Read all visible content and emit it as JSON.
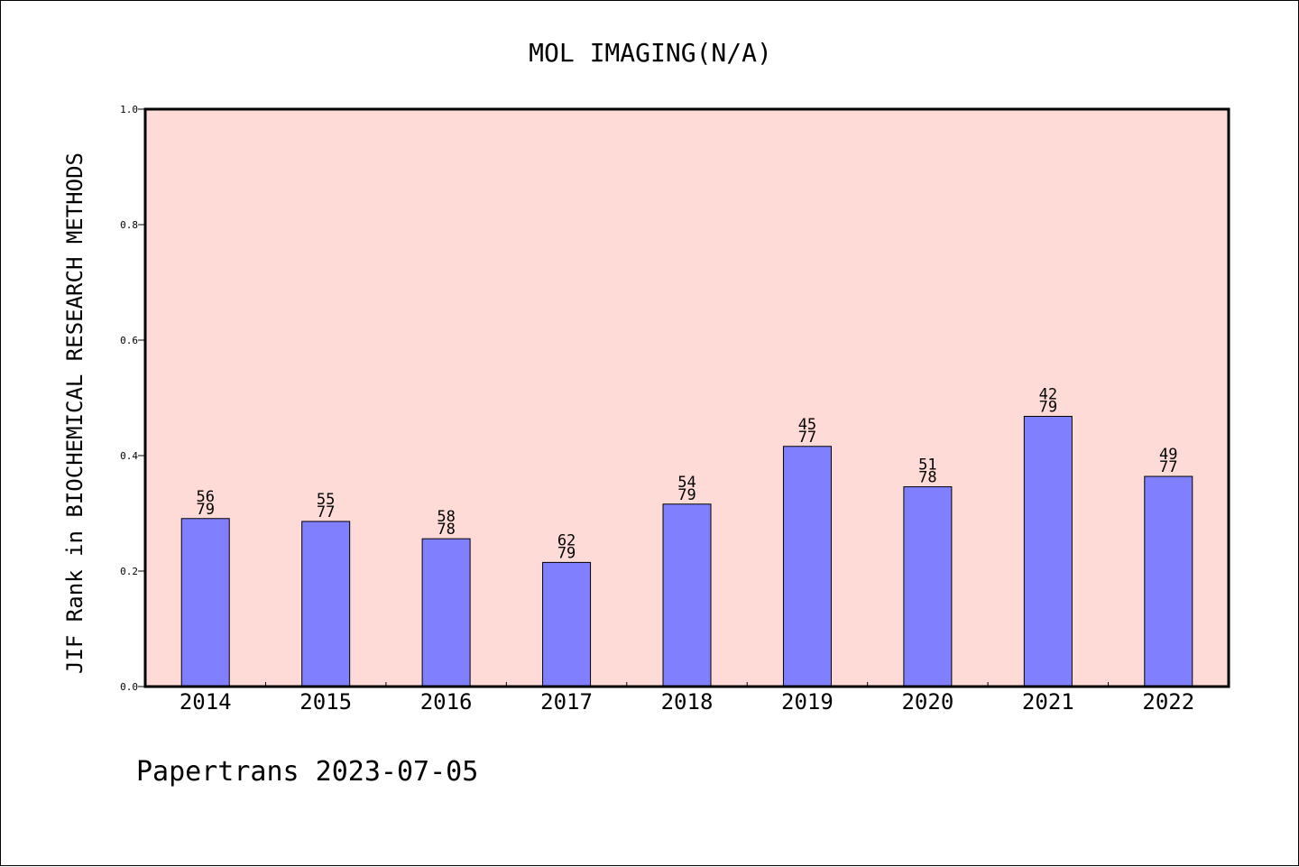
{
  "chart_data": {
    "type": "bar",
    "title": "MOL IMAGING(N/A)",
    "ylabel": "JIF Rank in BIOCHEMICAL RESEARCH METHODS",
    "xlabel": "",
    "ylim": [
      0,
      1.0
    ],
    "yticks": [
      "0.0",
      "0.2",
      "0.4",
      "0.6",
      "0.8",
      "1.0"
    ],
    "categories": [
      "2014",
      "2015",
      "2016",
      "2017",
      "2018",
      "2019",
      "2020",
      "2021",
      "2022"
    ],
    "values": [
      0.291,
      0.286,
      0.256,
      0.215,
      0.316,
      0.416,
      0.346,
      0.468,
      0.364
    ],
    "labels": [
      {
        "rank": "56",
        "total": "79"
      },
      {
        "rank": "55",
        "total": "77"
      },
      {
        "rank": "58",
        "total": "78"
      },
      {
        "rank": "62",
        "total": "79"
      },
      {
        "rank": "54",
        "total": "79"
      },
      {
        "rank": "45",
        "total": "77"
      },
      {
        "rank": "51",
        "total": "78"
      },
      {
        "rank": "42",
        "total": "79"
      },
      {
        "rank": "49",
        "total": "77"
      }
    ],
    "grid": false,
    "legend": "none",
    "colors": {
      "plot_background": "#FFDBD8",
      "bar_fill": "#8080FF",
      "bar_stroke": "#000000"
    }
  },
  "footer": {
    "credit": "Papertrans 2023-07-05"
  }
}
